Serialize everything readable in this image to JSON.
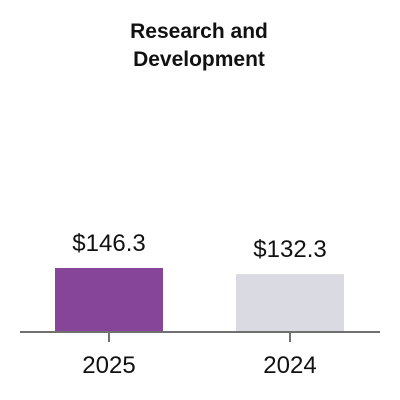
{
  "chart_data": {
    "type": "bar",
    "title": "Research and Development",
    "title_lines": [
      "Research and",
      "Development"
    ],
    "categories": [
      "2025",
      "2024"
    ],
    "values": [
      146.3,
      132.3
    ],
    "value_labels": [
      "$146.3",
      "$132.3"
    ],
    "bar_colors": [
      "#87459a",
      "#dadae3"
    ],
    "xlabel": "",
    "ylabel": "",
    "ylim": [
      0,
      146.3
    ],
    "grid": false,
    "legend": "none"
  }
}
